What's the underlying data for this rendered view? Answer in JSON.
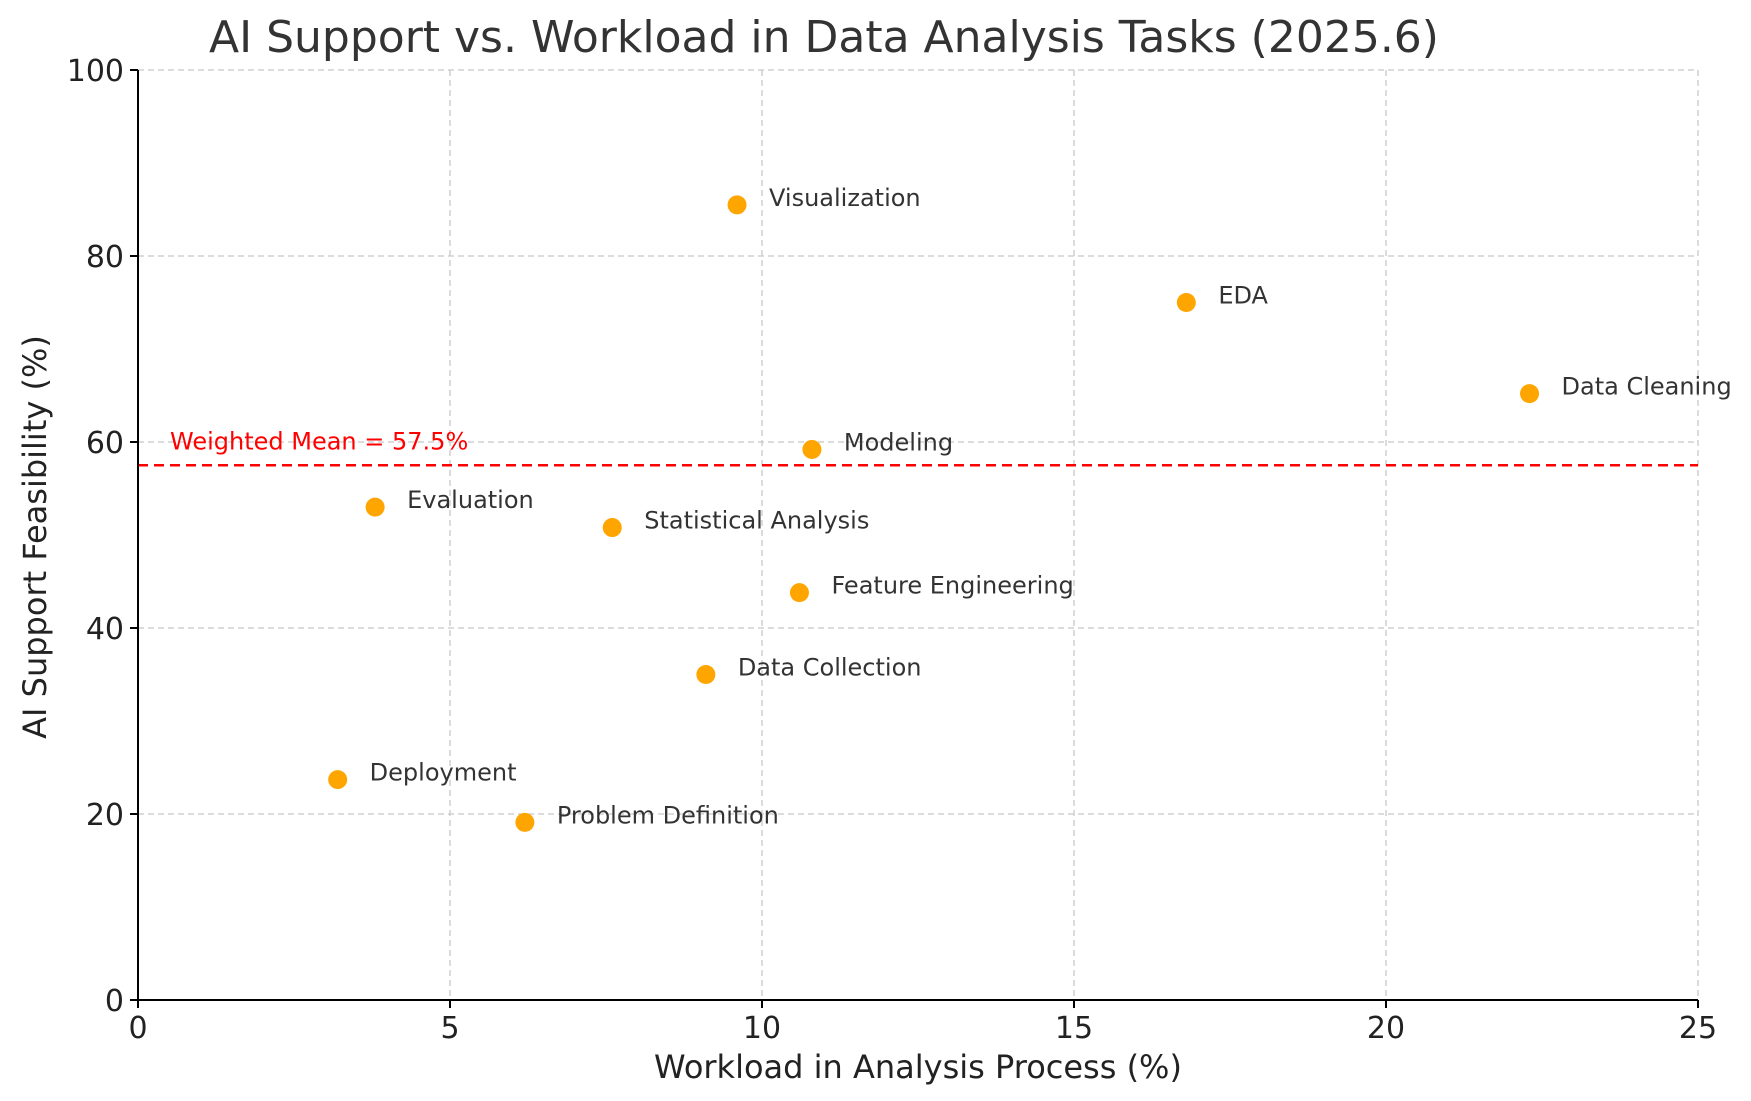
{
  "chart_data": {
    "type": "scatter",
    "title": "AI Support vs. Workload in Data Analysis Tasks (2025.6)",
    "xlabel": "Workload in Analysis Process (%)",
    "ylabel": "AI Support Feasibility (%)",
    "xlim": [
      0,
      25
    ],
    "ylim": [
      0,
      100
    ],
    "xticks": [
      "0",
      "5",
      "10",
      "15",
      "20",
      "25"
    ],
    "yticks": [
      "0",
      "20",
      "40",
      "60",
      "80",
      "100"
    ],
    "grid": true,
    "point_color": "#FFA500",
    "points": [
      {
        "label": "Visualization",
        "x": 9.6,
        "y": 85.5
      },
      {
        "label": "EDA",
        "x": 16.8,
        "y": 75.0
      },
      {
        "label": "Data Cleaning",
        "x": 22.3,
        "y": 65.2
      },
      {
        "label": "Modeling",
        "x": 10.8,
        "y": 59.2
      },
      {
        "label": "Evaluation",
        "x": 3.8,
        "y": 53.0
      },
      {
        "label": "Statistical Analysis",
        "x": 7.6,
        "y": 50.8
      },
      {
        "label": "Feature Engineering",
        "x": 10.6,
        "y": 43.8
      },
      {
        "label": "Data Collection",
        "x": 9.1,
        "y": 35.0
      },
      {
        "label": "Deployment",
        "x": 3.2,
        "y": 23.7
      },
      {
        "label": "Problem Definition",
        "x": 6.2,
        "y": 19.1
      }
    ],
    "reference_line": {
      "axis": "y",
      "value": 57.5,
      "label": "Weighted Mean = 57.5%",
      "color": "#FF0000",
      "style": "dashed"
    }
  }
}
